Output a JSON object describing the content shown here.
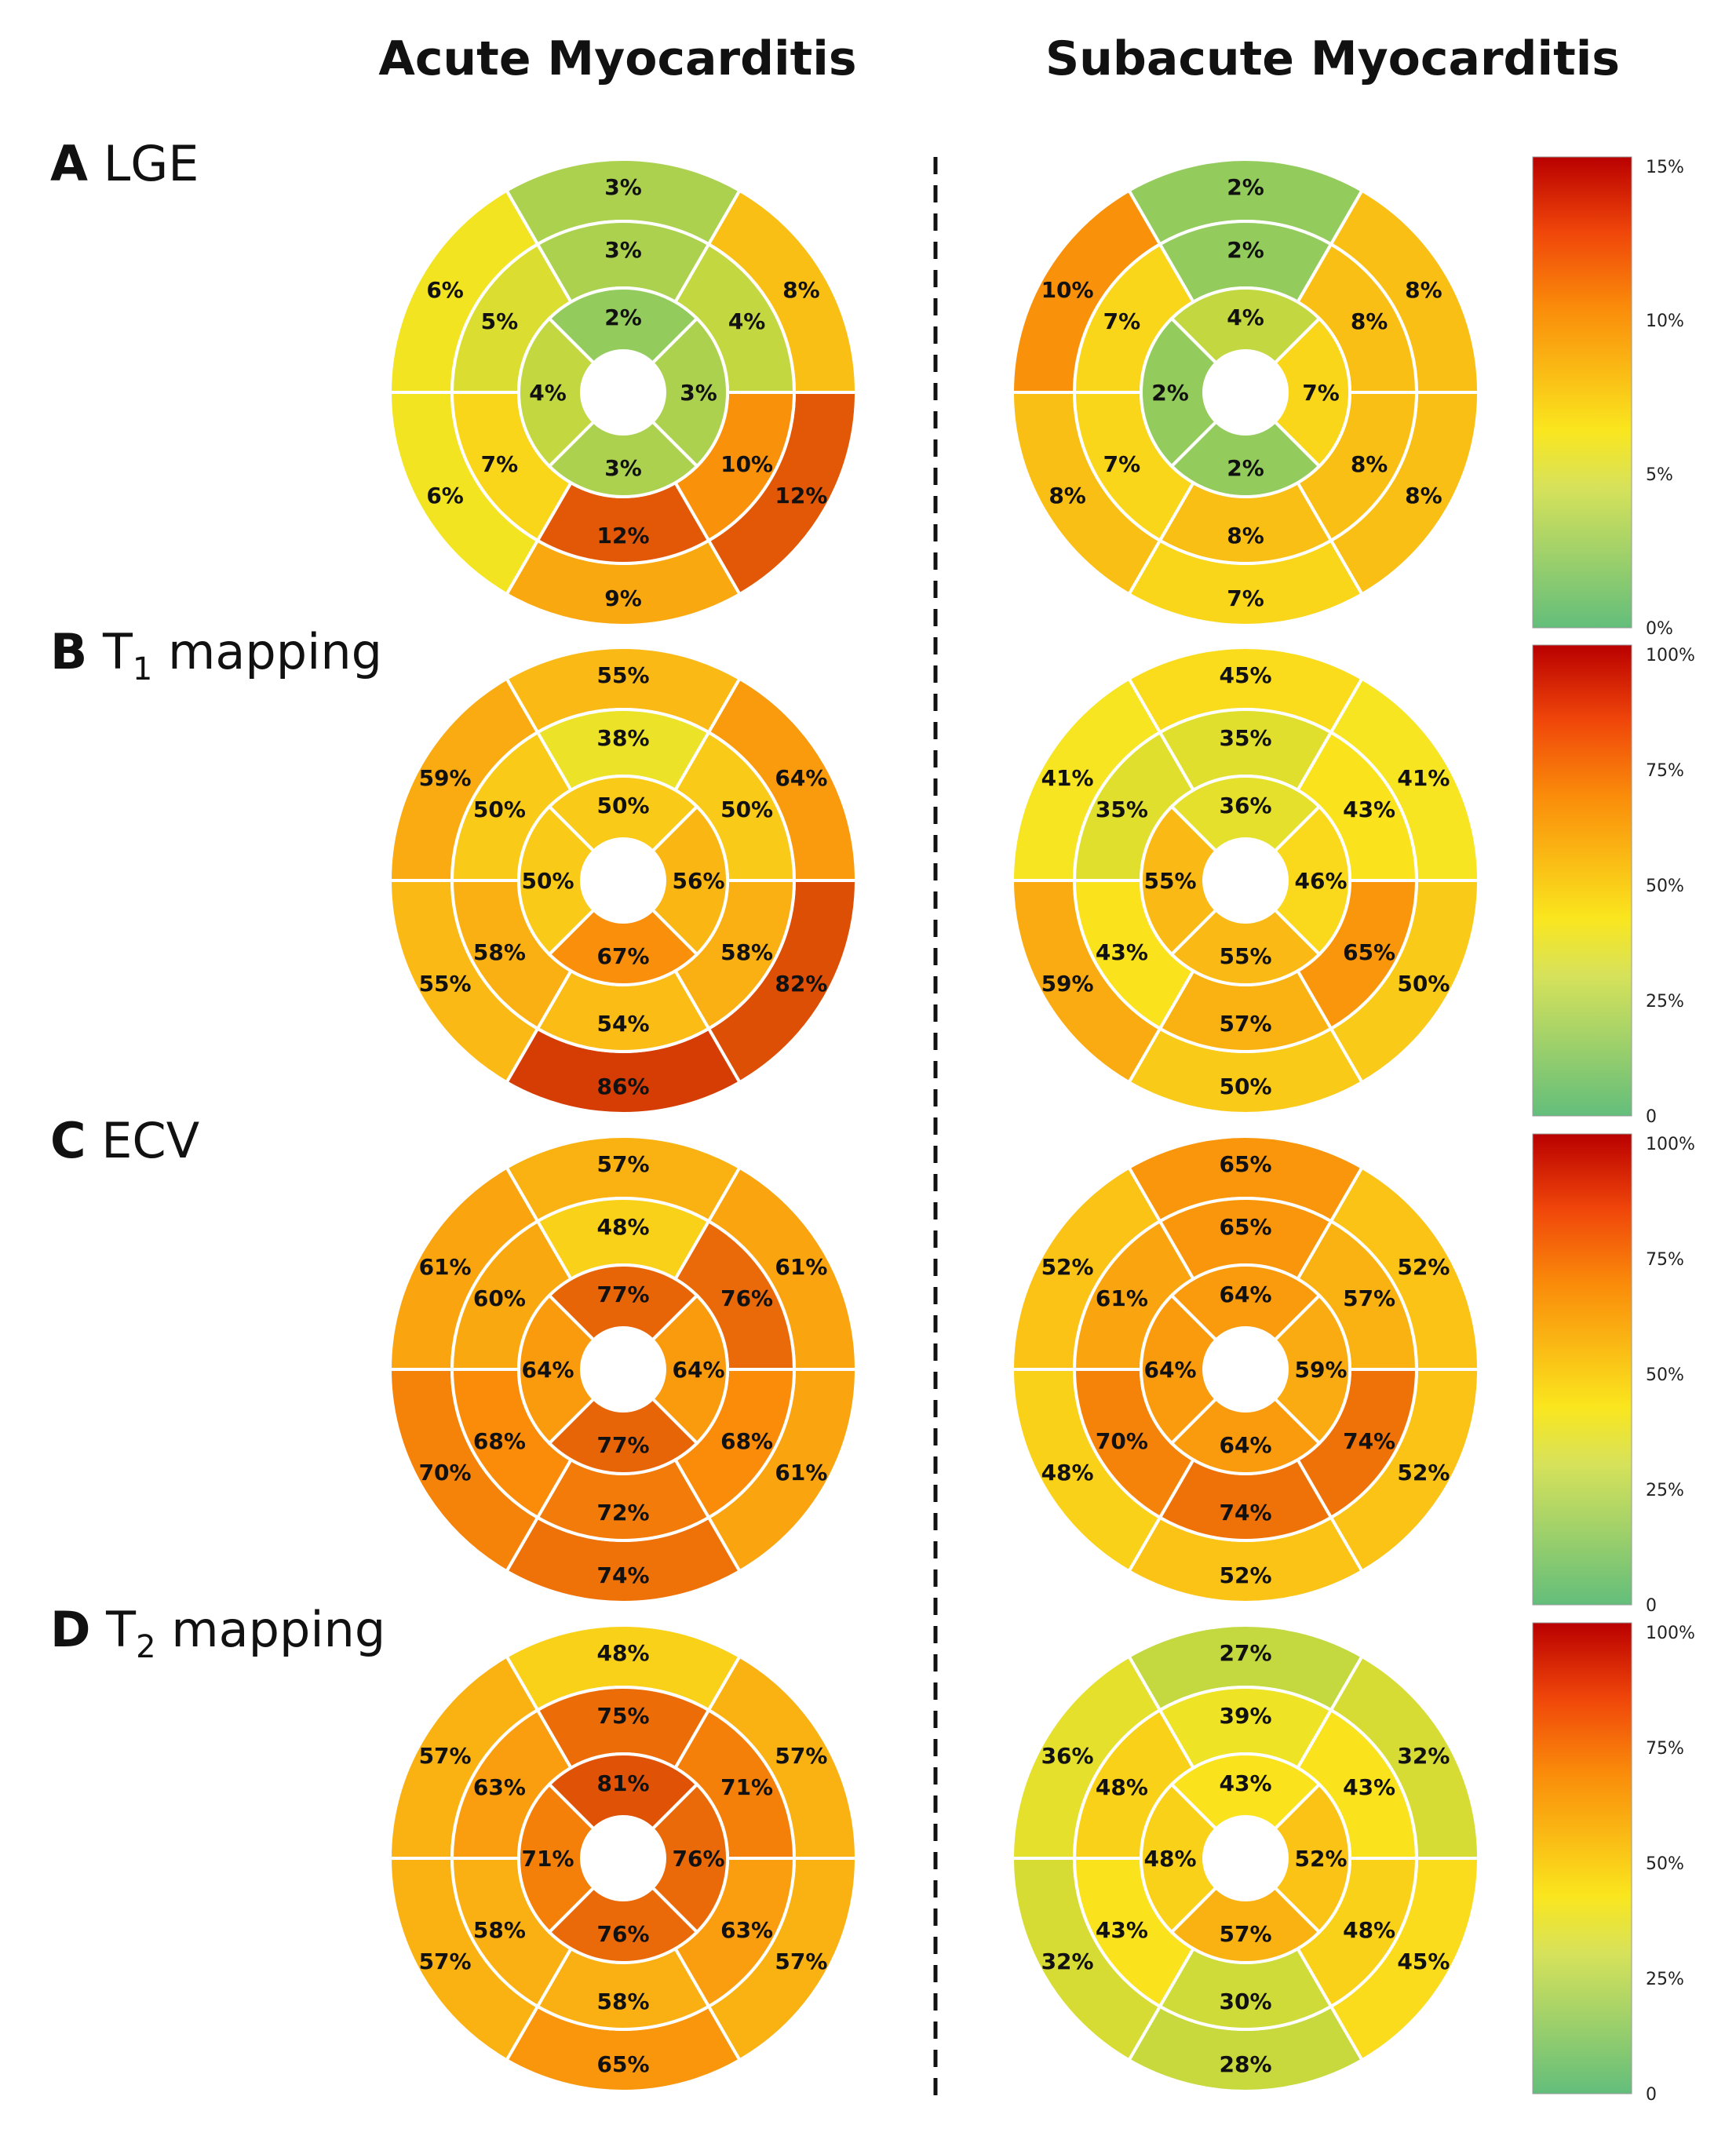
{
  "columns": [
    "Acute Myocarditis",
    "Subacute Myocarditis"
  ],
  "colors": {
    "low": "#63be7b",
    "mid": "#fae61e",
    "orange": "#fa8c0a",
    "high": "#b90000",
    "divider": "#111111"
  },
  "segment_order_note": "AHA 16-segment; arrays ordered ring by ring from the top segment, clockwise",
  "chart_data": [
    {
      "type": "bullseye",
      "row": "A",
      "title": "LGE",
      "subscript": "",
      "scale_max": 15,
      "colorbar_ticks": [
        "15%",
        "10%",
        "5%",
        "0%"
      ],
      "acute": {
        "basal": [
          3,
          8,
          12,
          9,
          6,
          6
        ],
        "mid": [
          3,
          4,
          10,
          12,
          7,
          5
        ],
        "apical": [
          2,
          3,
          3,
          4
        ]
      },
      "acute_labels": {
        "basal": [
          "3%",
          "8%",
          "12%",
          "9%",
          "6%",
          "6%"
        ],
        "mid": [
          "3%",
          "4%",
          "10%",
          "12%",
          "7%",
          "5%"
        ],
        "apical": [
          "2%",
          "3%",
          "3%",
          "4%"
        ]
      },
      "subacute": {
        "basal": [
          2,
          8,
          8,
          7,
          8,
          10
        ],
        "mid": [
          2,
          8,
          8,
          8,
          7,
          7
        ],
        "apical": [
          4,
          7,
          2,
          2
        ]
      },
      "subacute_labels": {
        "basal": [
          "2%",
          "8%",
          "8%",
          "7%",
          "8%",
          "10%"
        ],
        "mid": [
          "2%",
          "8%",
          "8%",
          "8%",
          "7%",
          "7%"
        ],
        "apical": [
          "4%",
          "7%",
          "2%",
          "2%"
        ]
      }
    },
    {
      "type": "bullseye",
      "row": "B",
      "title": "T",
      "subscript": "1",
      "title_suffix": " mapping",
      "scale_max": 100,
      "colorbar_ticks": [
        "100%",
        "75%",
        "50%",
        "25%",
        "0"
      ],
      "acute": {
        "basal": [
          55,
          64,
          82,
          86,
          55,
          59
        ],
        "mid": [
          38,
          50,
          58,
          54,
          58,
          50
        ],
        "apical": [
          50,
          56,
          67,
          50
        ]
      },
      "acute_labels": {
        "basal": [
          "55%",
          "64%",
          "82%",
          "86%",
          "55%",
          "59%"
        ],
        "mid": [
          "38%",
          "50%",
          "58%",
          "54%",
          "58%",
          "50%"
        ],
        "apical": [
          "50%",
          "56%",
          "67%",
          "50%"
        ]
      },
      "subacute": {
        "basal": [
          45,
          41,
          50,
          50,
          59,
          41
        ],
        "mid": [
          35,
          43,
          65,
          57,
          43,
          35
        ],
        "apical": [
          36,
          46,
          55,
          55
        ]
      },
      "subacute_labels": {
        "basal": [
          "45%",
          "41%",
          "50%",
          "50%",
          "59%",
          "41%"
        ],
        "mid": [
          "35%",
          "43%",
          "65%",
          "57%",
          "43%",
          "35%"
        ],
        "apical": [
          "36%",
          "46%",
          "55%",
          "55%"
        ]
      }
    },
    {
      "type": "bullseye",
      "row": "C",
      "title": "ECV",
      "subscript": "",
      "scale_max": 100,
      "colorbar_ticks": [
        "100%",
        "75%",
        "50%",
        "25%",
        "0"
      ],
      "acute": {
        "basal": [
          57,
          61,
          61,
          74,
          70,
          61
        ],
        "mid": [
          48,
          76,
          68,
          72,
          68,
          60
        ],
        "apical": [
          77,
          64,
          77,
          64
        ]
      },
      "acute_labels": {
        "basal": [
          "57%",
          "61%",
          "61%",
          "74%",
          "70%",
          "61%"
        ],
        "mid": [
          "48%",
          "76%",
          "68%",
          "72%",
          "68%",
          "60%"
        ],
        "apical": [
          "77%",
          "64%",
          "77%",
          "64%"
        ]
      },
      "subacute": {
        "basal": [
          65,
          52,
          52,
          52,
          48,
          52
        ],
        "mid": [
          65,
          57,
          74,
          74,
          70,
          61
        ],
        "apical": [
          64,
          59,
          64,
          64
        ]
      },
      "subacute_labels": {
        "basal": [
          "65%",
          "52%",
          "52%",
          "52%",
          "48%",
          "52%"
        ],
        "mid": [
          "65%",
          "57%",
          "74%",
          "74%",
          "70%",
          "61%"
        ],
        "apical": [
          "64%",
          "59%",
          "64%",
          "64%"
        ]
      }
    },
    {
      "type": "bullseye",
      "row": "D",
      "title": "T",
      "subscript": "2",
      "title_suffix": " mapping",
      "scale_max": 100,
      "colorbar_ticks": [
        "100%",
        "75%",
        "50%",
        "25%",
        "0"
      ],
      "acute": {
        "basal": [
          48,
          57,
          57,
          65,
          57,
          57
        ],
        "mid": [
          75,
          71,
          63,
          58,
          58,
          63
        ],
        "apical": [
          81,
          76,
          76,
          71
        ]
      },
      "acute_labels": {
        "basal": [
          "48%",
          "57%",
          "57%",
          "65%",
          "57%",
          "57%"
        ],
        "mid": [
          "75%",
          "71%",
          "63%",
          "58%",
          "58%",
          "63%"
        ],
        "apical": [
          "81%",
          "76%",
          "76%",
          "71%"
        ]
      },
      "subacute": {
        "basal": [
          27,
          32,
          45,
          28,
          32,
          36
        ],
        "mid": [
          39,
          43,
          48,
          30,
          43,
          48
        ],
        "apical": [
          43,
          52,
          57,
          48
        ]
      },
      "subacute_labels": {
        "basal": [
          "27%",
          "32%",
          "45%",
          "28%",
          "32%",
          "36%"
        ],
        "mid": [
          "39%",
          "43%",
          "48%",
          "30%",
          "43%",
          "48%"
        ],
        "apical": [
          "43%",
          "52%",
          "57%",
          "48%"
        ]
      }
    }
  ]
}
